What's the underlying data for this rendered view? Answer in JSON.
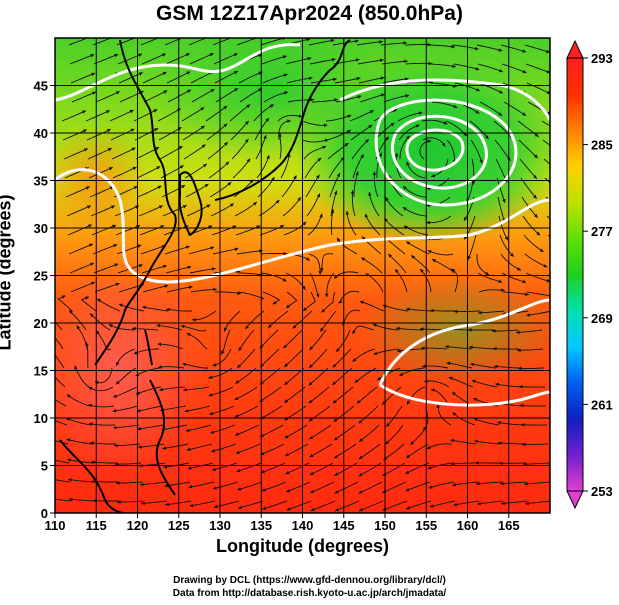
{
  "title": "GSM 12Z17Apr2024 (850.0hPa)",
  "xlabel": "Longitude (degrees)",
  "ylabel": "Latitude  (degrees)",
  "credits": {
    "line1": "Drawing by DCL (https://www.gfd-dennou.org/library/dcl/)",
    "line2": "Data from http://database.rish.kyoto-u.ac.jp/arch/jmadata/"
  },
  "chart_data": {
    "type": "heatmap",
    "x_range": [
      110,
      170
    ],
    "y_range": [
      0,
      50
    ],
    "x_ticks": [
      110,
      115,
      120,
      125,
      130,
      135,
      140,
      145,
      150,
      155,
      160,
      165
    ],
    "y_ticks": [
      0,
      5,
      10,
      15,
      20,
      25,
      30,
      35,
      40,
      45
    ],
    "grid": true,
    "colorbar": {
      "min": 253,
      "max": 293,
      "ticks": [
        253,
        261,
        269,
        277,
        285,
        293
      ],
      "colors": [
        "#e040d0",
        "#7020d0",
        "#1020c0",
        "#0060f0",
        "#00c8ff",
        "#00e0b0",
        "#20d020",
        "#60e000",
        "#c0e000",
        "#ffd000",
        "#ff8000",
        "#ff3000",
        "#ff2020"
      ]
    }
  }
}
